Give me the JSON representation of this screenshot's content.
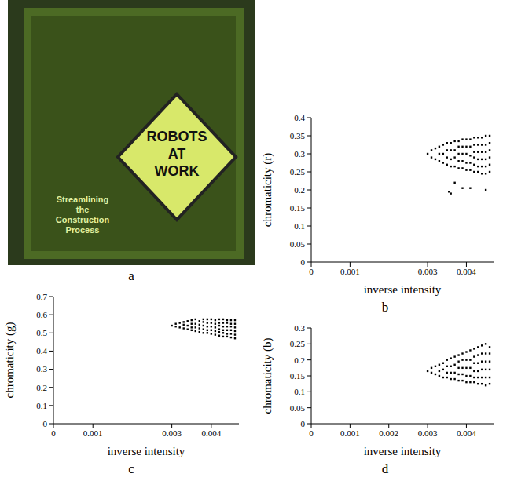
{
  "image": {
    "label": "a",
    "sign": [
      "ROBOTS",
      "AT",
      "WORK"
    ],
    "caption": [
      "Streamlining",
      "the",
      "Construction",
      "Process"
    ]
  },
  "chart_data": [
    {
      "type": "scatter",
      "label": "b",
      "x_label": "inverse intensity",
      "y_label": "chromaticity (r)",
      "color": "#000000",
      "marker": "square",
      "xlim": [
        0,
        0.0047
      ],
      "xticks": [
        0,
        0.001,
        0.003,
        0.004
      ],
      "ylim": [
        0,
        0.4
      ],
      "yticks": [
        0,
        0.05,
        0.1,
        0.15,
        0.2,
        0.25,
        0.3,
        0.35,
        0.4
      ],
      "x": [
        0.003,
        0.0031,
        0.0031,
        0.0032,
        0.0032,
        0.0033,
        0.0033,
        0.0033,
        0.0034,
        0.0034,
        0.0034,
        0.0035,
        0.0035,
        0.0035,
        0.0035,
        0.0036,
        0.0036,
        0.0036,
        0.0036,
        0.0037,
        0.0037,
        0.0037,
        0.0037,
        0.0038,
        0.0038,
        0.0038,
        0.0038,
        0.0038,
        0.0039,
        0.0039,
        0.0039,
        0.0039,
        0.0039,
        0.004,
        0.004,
        0.004,
        0.004,
        0.004,
        0.0041,
        0.0041,
        0.0041,
        0.0041,
        0.0041,
        0.0042,
        0.0042,
        0.0042,
        0.0042,
        0.0042,
        0.0042,
        0.0043,
        0.0043,
        0.0043,
        0.0043,
        0.0043,
        0.0043,
        0.0044,
        0.0044,
        0.0044,
        0.0044,
        0.0044,
        0.0044,
        0.0045,
        0.0045,
        0.0045,
        0.0045,
        0.0045,
        0.0045,
        0.0046,
        0.0046,
        0.0046,
        0.0046,
        0.0046,
        0.0046,
        0.00355,
        0.0036,
        0.0037,
        0.0039,
        0.0041,
        0.0045
      ],
      "values": [
        0.3,
        0.29,
        0.31,
        0.285,
        0.315,
        0.28,
        0.3,
        0.32,
        0.275,
        0.3,
        0.325,
        0.27,
        0.29,
        0.31,
        0.33,
        0.265,
        0.285,
        0.31,
        0.33,
        0.265,
        0.29,
        0.31,
        0.335,
        0.26,
        0.28,
        0.3,
        0.32,
        0.335,
        0.26,
        0.28,
        0.3,
        0.32,
        0.34,
        0.255,
        0.275,
        0.3,
        0.32,
        0.34,
        0.255,
        0.275,
        0.295,
        0.32,
        0.34,
        0.25,
        0.27,
        0.29,
        0.305,
        0.325,
        0.345,
        0.25,
        0.265,
        0.285,
        0.305,
        0.325,
        0.345,
        0.245,
        0.265,
        0.285,
        0.305,
        0.325,
        0.345,
        0.245,
        0.265,
        0.285,
        0.305,
        0.325,
        0.35,
        0.25,
        0.27,
        0.29,
        0.31,
        0.33,
        0.35,
        0.195,
        0.19,
        0.22,
        0.205,
        0.205,
        0.2
      ]
    },
    {
      "type": "scatter",
      "label": "c",
      "x_label": "inverse intensity",
      "y_label": "chromaticity (g)",
      "color": "#000000",
      "marker": "square",
      "xlim": [
        0,
        0.0047
      ],
      "xticks": [
        0,
        0.001,
        0.003,
        0.004
      ],
      "ylim": [
        0,
        0.7
      ],
      "yticks": [
        0,
        0.1,
        0.2,
        0.3,
        0.4,
        0.5,
        0.6,
        0.7
      ],
      "x": [
        0.003,
        0.0031,
        0.0031,
        0.0032,
        0.0032,
        0.0033,
        0.0033,
        0.0033,
        0.0034,
        0.0034,
        0.0034,
        0.0035,
        0.0035,
        0.0035,
        0.0035,
        0.0036,
        0.0036,
        0.0036,
        0.0036,
        0.0037,
        0.0037,
        0.0037,
        0.0037,
        0.0038,
        0.0038,
        0.0038,
        0.0038,
        0.0038,
        0.0039,
        0.0039,
        0.0039,
        0.0039,
        0.0039,
        0.004,
        0.004,
        0.004,
        0.004,
        0.004,
        0.0041,
        0.0041,
        0.0041,
        0.0041,
        0.0041,
        0.0042,
        0.0042,
        0.0042,
        0.0042,
        0.0042,
        0.0042,
        0.0043,
        0.0043,
        0.0043,
        0.0043,
        0.0043,
        0.0043,
        0.0044,
        0.0044,
        0.0044,
        0.0044,
        0.0044,
        0.0044,
        0.0045,
        0.0045,
        0.0045,
        0.0045,
        0.0045,
        0.0045,
        0.0046,
        0.0046,
        0.0046,
        0.0046,
        0.0046,
        0.0046
      ],
      "values": [
        0.54,
        0.535,
        0.55,
        0.53,
        0.555,
        0.525,
        0.545,
        0.56,
        0.52,
        0.54,
        0.565,
        0.515,
        0.53,
        0.55,
        0.57,
        0.51,
        0.53,
        0.55,
        0.575,
        0.505,
        0.525,
        0.545,
        0.565,
        0.5,
        0.52,
        0.54,
        0.56,
        0.575,
        0.5,
        0.515,
        0.535,
        0.555,
        0.575,
        0.495,
        0.515,
        0.535,
        0.555,
        0.575,
        0.49,
        0.51,
        0.53,
        0.55,
        0.57,
        0.485,
        0.505,
        0.52,
        0.54,
        0.555,
        0.575,
        0.48,
        0.5,
        0.515,
        0.535,
        0.555,
        0.575,
        0.48,
        0.495,
        0.515,
        0.535,
        0.555,
        0.57,
        0.475,
        0.495,
        0.515,
        0.535,
        0.55,
        0.57,
        0.47,
        0.49,
        0.51,
        0.53,
        0.55,
        0.57
      ]
    },
    {
      "type": "scatter",
      "label": "d",
      "x_label": "inverse intensity",
      "y_label": "chromaticity (b)",
      "color": "#000000",
      "marker": "square",
      "xlim": [
        0,
        0.0047
      ],
      "xticks": [
        0,
        0.001,
        0.002,
        0.003,
        0.004
      ],
      "ylim": [
        0,
        0.3
      ],
      "yticks": [
        0,
        0.05,
        0.1,
        0.15,
        0.2,
        0.25,
        0.3
      ],
      "x": [
        0.003,
        0.0031,
        0.0031,
        0.0032,
        0.0032,
        0.0033,
        0.0033,
        0.0033,
        0.0034,
        0.0034,
        0.0034,
        0.0035,
        0.0035,
        0.0035,
        0.0035,
        0.0036,
        0.0036,
        0.0036,
        0.0036,
        0.0037,
        0.0037,
        0.0037,
        0.0037,
        0.0038,
        0.0038,
        0.0038,
        0.0038,
        0.0038,
        0.0039,
        0.0039,
        0.0039,
        0.0039,
        0.0039,
        0.004,
        0.004,
        0.004,
        0.004,
        0.004,
        0.0041,
        0.0041,
        0.0041,
        0.0041,
        0.0041,
        0.0042,
        0.0042,
        0.0042,
        0.0042,
        0.0042,
        0.0042,
        0.0043,
        0.0043,
        0.0043,
        0.0043,
        0.0043,
        0.0043,
        0.0044,
        0.0044,
        0.0044,
        0.0044,
        0.0044,
        0.0044,
        0.0045,
        0.0045,
        0.0045,
        0.0045,
        0.0045,
        0.0045,
        0.0046,
        0.0046,
        0.0046,
        0.0046,
        0.0046,
        0.0046
      ],
      "values": [
        0.165,
        0.16,
        0.175,
        0.155,
        0.18,
        0.15,
        0.165,
        0.185,
        0.145,
        0.17,
        0.19,
        0.145,
        0.16,
        0.18,
        0.2,
        0.14,
        0.16,
        0.18,
        0.205,
        0.14,
        0.16,
        0.185,
        0.21,
        0.135,
        0.155,
        0.175,
        0.195,
        0.215,
        0.135,
        0.155,
        0.175,
        0.2,
        0.22,
        0.13,
        0.15,
        0.175,
        0.2,
        0.225,
        0.13,
        0.15,
        0.175,
        0.2,
        0.23,
        0.13,
        0.145,
        0.165,
        0.19,
        0.21,
        0.235,
        0.125,
        0.145,
        0.165,
        0.19,
        0.215,
        0.24,
        0.125,
        0.145,
        0.17,
        0.195,
        0.22,
        0.245,
        0.12,
        0.145,
        0.17,
        0.195,
        0.22,
        0.25,
        0.125,
        0.145,
        0.17,
        0.195,
        0.22,
        0.24
      ]
    }
  ]
}
